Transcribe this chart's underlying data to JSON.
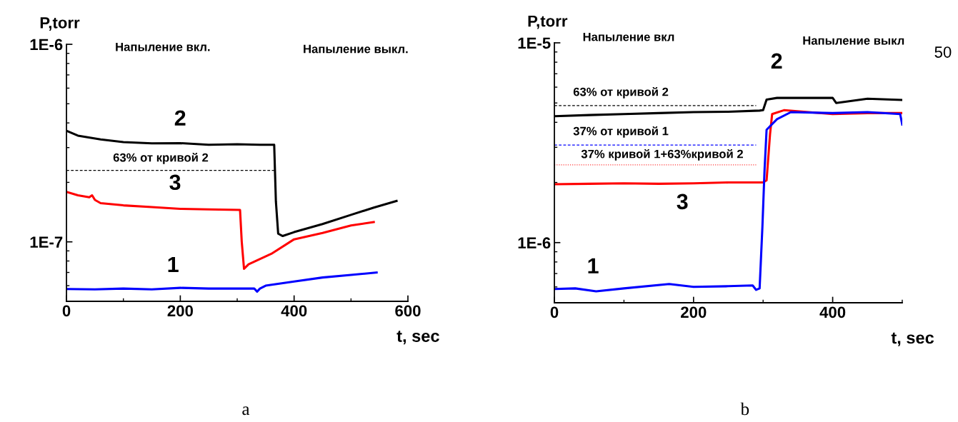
{
  "chart_data": [
    {
      "type": "line",
      "xlabel": "t, sec",
      "ylabel": "P,torr",
      "log": "y",
      "legend": false,
      "grid": false,
      "xlim": [
        0,
        600
      ],
      "xticks": [
        0,
        200,
        400,
        600
      ],
      "ylim": [
        5e-08,
        1e-06
      ],
      "yticks": [
        {
          "value": 1e-07,
          "label": "1E-7"
        },
        {
          "value": 1e-06,
          "label": "1E-6"
        }
      ],
      "series": [
        {
          "color": "#000000",
          "line_style": "solid",
          "x": [
            0,
            20,
            60,
            100,
            150,
            200,
            250,
            300,
            340,
            365,
            368,
            372,
            380,
            400,
            450,
            500,
            540,
            580
          ],
          "values": [
            3.65e-07,
            3.45e-07,
            3.3e-07,
            3.2e-07,
            3.15e-07,
            3.16e-07,
            3.1e-07,
            3.12e-07,
            3.1e-07,
            3.1e-07,
            1.6e-07,
            1.1e-07,
            1.07e-07,
            1.12e-07,
            1.23e-07,
            1.37e-07,
            1.49e-07,
            1.61e-07
          ]
        },
        {
          "color": "#ff0000",
          "line_style": "solid",
          "x": [
            0,
            20,
            40,
            45,
            50,
            60,
            100,
            150,
            200,
            250,
            305,
            308,
            312,
            320,
            360,
            400,
            450,
            500,
            540
          ],
          "values": [
            1.79e-07,
            1.72e-07,
            1.68e-07,
            1.72e-07,
            1.63e-07,
            1.57e-07,
            1.53e-07,
            1.5e-07,
            1.47e-07,
            1.46e-07,
            1.45e-07,
            1e-07,
            7.3e-08,
            7.7e-08,
            8.7e-08,
            1.03e-07,
            1.11e-07,
            1.21e-07,
            1.26e-07
          ]
        },
        {
          "color": "#0000ff",
          "line_style": "solid",
          "x": [
            0,
            50,
            100,
            150,
            200,
            250,
            300,
            330,
            335,
            340,
            350,
            400,
            450,
            500,
            545
          ],
          "values": [
            5.77e-08,
            5.75e-08,
            5.8e-08,
            5.75e-08,
            5.85e-08,
            5.8e-08,
            5.8e-08,
            5.8e-08,
            5.6e-08,
            5.8e-08,
            6e-08,
            6.3e-08,
            6.6e-08,
            6.8e-08,
            7e-08
          ]
        },
        {
          "color": "#000000",
          "line_style": "dashed",
          "x": [
            0,
            365
          ],
          "values": [
            2.3e-07,
            2.3e-07
          ]
        }
      ],
      "annotations": [
        "Напыление вкл.",
        "Напыление выкл.",
        "2",
        "3",
        "1",
        "63% от кривой 2",
        "a"
      ]
    },
    {
      "type": "line",
      "xlabel": "t, sec",
      "ylabel": "P,torr",
      "log": "y",
      "legend": false,
      "grid": false,
      "xlim": [
        0,
        500
      ],
      "xticks": [
        0,
        200,
        400
      ],
      "ylim": [
        5e-07,
        1e-05
      ],
      "yticks": [
        {
          "value": 1e-06,
          "label": "1E-6"
        },
        {
          "value": 1e-05,
          "label": "1E-5"
        }
      ],
      "series": [
        {
          "color": "#000000",
          "line_style": "solid",
          "x": [
            0,
            50,
            100,
            150,
            200,
            250,
            295,
            300,
            305,
            320,
            350,
            400,
            405,
            450,
            500
          ],
          "values": [
            4.29e-06,
            4.35e-06,
            4.4e-06,
            4.45e-06,
            4.5e-06,
            4.52e-06,
            4.58e-06,
            4.6e-06,
            5.2e-06,
            5.3e-06,
            5.3e-06,
            5.3e-06,
            5e-06,
            5.25e-06,
            5.18e-06
          ]
        },
        {
          "color": "#ff0000",
          "line_style": "solid",
          "x": [
            0,
            50,
            100,
            150,
            200,
            250,
            300,
            305,
            310,
            313,
            330,
            400,
            450,
            500
          ],
          "values": [
            1.96e-06,
            1.97e-06,
            1.98e-06,
            1.97e-06,
            1.98e-06,
            2e-06,
            2e-06,
            2.05e-06,
            3.5e-06,
            4.4e-06,
            4.6e-06,
            4.4e-06,
            4.45e-06,
            4.45e-06
          ]
        },
        {
          "color": "#0000ff",
          "line_style": "solid",
          "x": [
            0,
            30,
            60,
            100,
            165,
            200,
            250,
            285,
            290,
            295,
            299,
            302,
            305,
            320,
            340,
            400,
            450,
            497,
            500
          ],
          "values": [
            5.86e-07,
            5.9e-07,
            5.7e-07,
            5.9e-07,
            6.2e-07,
            6e-07,
            6.05e-07,
            6.1e-07,
            5.8e-07,
            5.9e-07,
            1.2e-06,
            2.28e-06,
            3.67e-06,
            4.15e-06,
            4.5e-06,
            4.45e-06,
            4.5e-06,
            4.4e-06,
            3.9e-06
          ]
        },
        {
          "color": "#000000",
          "line_style": "dashed",
          "x": [
            0,
            290
          ],
          "values": [
            4.85e-06,
            4.85e-06
          ]
        },
        {
          "color": "#0000ff",
          "line_style": "dashed",
          "x": [
            0,
            290
          ],
          "values": [
            3.08e-06,
            3.08e-06
          ]
        },
        {
          "color": "#ff4040",
          "line_style": "dotted",
          "x": [
            0,
            290
          ],
          "values": [
            2.45e-06,
            2.45e-06
          ]
        }
      ],
      "annotations": [
        "Напыление вкл",
        "Напыление выкл",
        "2",
        "3",
        "1",
        "63% от кривой 2",
        "37% от кривой 1",
        "37% кривой 1+63%кривой 2",
        "50",
        "b"
      ]
    }
  ]
}
